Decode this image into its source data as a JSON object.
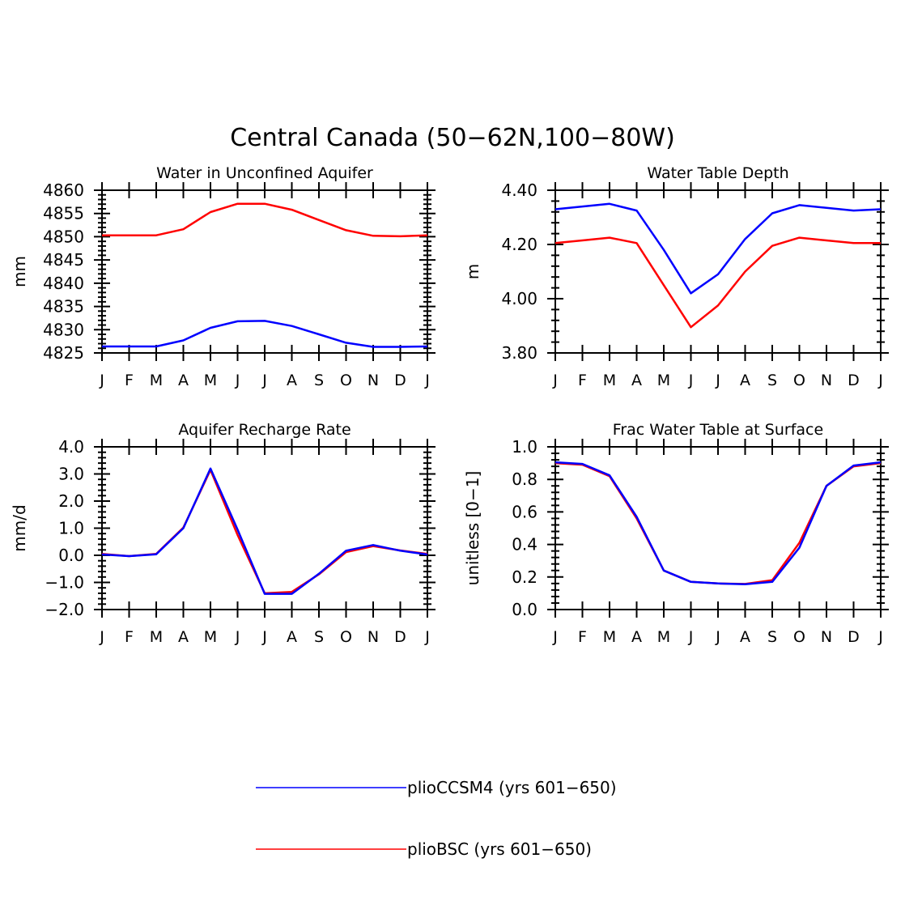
{
  "figure": {
    "title": "Central Canada (50−62N,100−80W)"
  },
  "chart_data": [
    {
      "type": "line",
      "title": "Water in Unconfined Aquifer",
      "xlabel": "",
      "ylabel": "mm",
      "categories": [
        "J",
        "F",
        "M",
        "A",
        "M",
        "J",
        "J",
        "A",
        "S",
        "O",
        "N",
        "D",
        "J"
      ],
      "ylim": [
        4825,
        4860
      ],
      "yticks": [
        4825,
        4830,
        4835,
        4840,
        4845,
        4850,
        4855,
        4860
      ],
      "ytick_labels": [
        "4825",
        "4830",
        "4835",
        "4840",
        "4845",
        "4850",
        "4855",
        "4860"
      ],
      "series": [
        {
          "name": "plioBSC (yrs 601−650)",
          "color": "#ff0000",
          "values": [
            4850.3,
            4850.3,
            4850.3,
            4851.6,
            4855.3,
            4857.1,
            4857.1,
            4855.8,
            4853.6,
            4851.4,
            4850.2,
            4850.1,
            4850.3
          ]
        },
        {
          "name": "plioCCSM4 (yrs 601−650)",
          "color": "#0000ff",
          "values": [
            4826.4,
            4826.4,
            4826.4,
            4827.7,
            4830.4,
            4831.8,
            4831.9,
            4830.8,
            4829.0,
            4827.2,
            4826.3,
            4826.3,
            4826.4
          ]
        }
      ]
    },
    {
      "type": "line",
      "title": "Water Table Depth",
      "xlabel": "",
      "ylabel": "m",
      "categories": [
        "J",
        "F",
        "M",
        "A",
        "M",
        "J",
        "J",
        "A",
        "S",
        "O",
        "N",
        "D",
        "J"
      ],
      "ylim": [
        3.8,
        4.4
      ],
      "yticks": [
        3.8,
        4.0,
        4.2,
        4.4
      ],
      "ytick_labels": [
        "3.80",
        "4.00",
        "4.20",
        "4.40"
      ],
      "series": [
        {
          "name": "plioBSC (yrs 601−650)",
          "color": "#ff0000",
          "values": [
            4.205,
            4.215,
            4.225,
            4.205,
            4.05,
            3.895,
            3.975,
            4.1,
            4.195,
            4.225,
            4.215,
            4.205,
            4.205
          ]
        },
        {
          "name": "plioCCSM4 (yrs 601−650)",
          "color": "#0000ff",
          "values": [
            4.33,
            4.34,
            4.35,
            4.325,
            4.18,
            4.02,
            4.09,
            4.22,
            4.315,
            4.345,
            4.335,
            4.325,
            4.33
          ]
        }
      ]
    },
    {
      "type": "line",
      "title": "Aquifer Recharge Rate",
      "xlabel": "",
      "ylabel": "mm/d",
      "categories": [
        "J",
        "F",
        "M",
        "A",
        "M",
        "J",
        "J",
        "A",
        "S",
        "O",
        "N",
        "D",
        "J"
      ],
      "ylim": [
        -2.0,
        4.0
      ],
      "yticks": [
        -2.0,
        -1.0,
        0.0,
        1.0,
        2.0,
        3.0,
        4.0
      ],
      "ytick_labels": [
        "−2.0",
        "−1.0",
        "0.0",
        "1.0",
        "2.0",
        "3.0",
        "4.0"
      ],
      "series": [
        {
          "name": "plioBSC (yrs 601−650)",
          "color": "#ff0000",
          "values": [
            0.05,
            -0.03,
            0.05,
            1.02,
            3.15,
            0.75,
            -1.4,
            -1.35,
            -0.7,
            0.12,
            0.34,
            0.18,
            0.05
          ]
        },
        {
          "name": "plioCCSM4 (yrs 601−650)",
          "color": "#0000ff",
          "values": [
            0.03,
            -0.03,
            0.04,
            1.0,
            3.2,
            0.95,
            -1.42,
            -1.42,
            -0.68,
            0.17,
            0.38,
            0.17,
            0.03
          ]
        }
      ]
    },
    {
      "type": "line",
      "title": "Frac Water Table at Surface",
      "xlabel": "",
      "ylabel": "unitless [0−1]",
      "categories": [
        "J",
        "F",
        "M",
        "A",
        "M",
        "J",
        "J",
        "A",
        "S",
        "O",
        "N",
        "D",
        "J"
      ],
      "ylim": [
        0.0,
        1.0
      ],
      "yticks": [
        0.0,
        0.2,
        0.4,
        0.6,
        0.8,
        1.0
      ],
      "ytick_labels": [
        "0.0",
        "0.2",
        "0.4",
        "0.6",
        "0.8",
        "1.0"
      ],
      "series": [
        {
          "name": "plioBSC (yrs 601−650)",
          "color": "#ff0000",
          "values": [
            0.9,
            0.89,
            0.82,
            0.56,
            0.24,
            0.17,
            0.16,
            0.157,
            0.18,
            0.41,
            0.76,
            0.88,
            0.9
          ]
        },
        {
          "name": "plioCCSM4 (yrs 601−650)",
          "color": "#0000ff",
          "values": [
            0.905,
            0.895,
            0.825,
            0.57,
            0.24,
            0.17,
            0.16,
            0.155,
            0.17,
            0.38,
            0.76,
            0.885,
            0.905
          ]
        }
      ]
    }
  ],
  "legend": {
    "position": "bottom-center",
    "items": [
      {
        "label": "plioCCSM4 (yrs 601−650)",
        "color": "#0000ff"
      },
      {
        "label": "plioBSC (yrs 601−650)",
        "color": "#ff0000"
      }
    ]
  }
}
